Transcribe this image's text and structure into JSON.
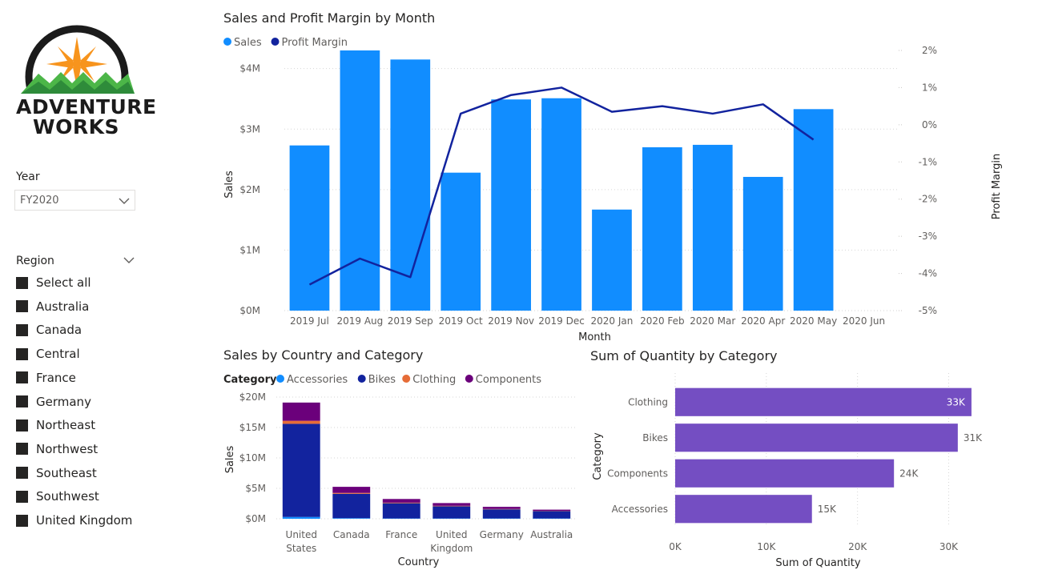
{
  "brand": {
    "line1": "Adventure",
    "line2": "Works"
  },
  "filters": {
    "year": {
      "title": "Year",
      "value": "FY2020"
    },
    "region": {
      "title": "Region",
      "items": [
        "Select all",
        "Australia",
        "Canada",
        "Central",
        "France",
        "Germany",
        "Northeast",
        "Northwest",
        "Southeast",
        "Southwest",
        "United Kingdom"
      ]
    }
  },
  "visuals": {
    "top": {
      "title": "Sales and Profit Margin by Month"
    },
    "bottom_left": {
      "title": "Sales by Country and Category"
    },
    "bottom_right": {
      "title": "Sum of Quantity by Category"
    }
  },
  "colors": {
    "sales": "#118DFF",
    "profit_margin": "#12239E",
    "bikes": "#12239E",
    "accessories": "#118DFF",
    "clothing": "#E66C37",
    "components": "#6B007B",
    "quantity_bar": "#744EC2"
  },
  "chart_data": [
    {
      "type": "bar",
      "combo": "bar+line",
      "title": "Sales and Profit Margin by Month",
      "xlabel": "Month",
      "ylabel": "Sales",
      "y2label": "Profit Margin",
      "legend": {
        "position": "top-left",
        "entries": [
          "Sales",
          "Profit Margin"
        ]
      },
      "categories": [
        "2019 Jul",
        "2019 Aug",
        "2019 Sep",
        "2019 Oct",
        "2019 Nov",
        "2019 Dec",
        "2020 Jan",
        "2020 Feb",
        "2020 Mar",
        "2020 Apr",
        "2020 May",
        "2020 Jun"
      ],
      "series": [
        {
          "name": "Sales",
          "type": "bar",
          "axis": "left",
          "values": [
            2.73,
            4.3,
            4.15,
            2.28,
            3.49,
            3.51,
            1.67,
            2.7,
            2.74,
            2.21,
            3.33,
            null
          ]
        },
        {
          "name": "Profit Margin",
          "type": "line",
          "axis": "right",
          "values": [
            -4.3,
            -3.6,
            -4.1,
            0.3,
            0.8,
            1.0,
            0.35,
            0.5,
            0.3,
            0.55,
            -0.4,
            null
          ]
        }
      ],
      "ylim": [
        0,
        4.3
      ],
      "yticks": [
        "$0M",
        "$1M",
        "$2M",
        "$3M",
        "$4M"
      ],
      "y2lim": [
        -5,
        2
      ],
      "y2ticks": [
        "2%",
        "1%",
        "0%",
        "-1%",
        "-2%",
        "-3%",
        "-4%",
        "-5%"
      ],
      "grid": true
    },
    {
      "type": "bar",
      "stacked": true,
      "title": "Sales by Country and Category",
      "xlabel": "Country",
      "ylabel": "Sales",
      "legend": {
        "position": "top-left",
        "title": "Category",
        "entries": [
          "Accessories",
          "Bikes",
          "Clothing",
          "Components"
        ]
      },
      "categories": [
        "United States",
        "Canada",
        "France",
        "United Kingdom",
        "Germany",
        "Australia"
      ],
      "category_lines": [
        [
          "United",
          "States"
        ],
        [
          "Canada"
        ],
        [
          "France"
        ],
        [
          "United",
          "Kingdom"
        ],
        [
          "Germany"
        ],
        [
          "Australia"
        ]
      ],
      "series": [
        {
          "name": "Accessories",
          "values": [
            0.3,
            0.1,
            0.05,
            0.05,
            0.05,
            0.05
          ]
        },
        {
          "name": "Bikes",
          "values": [
            15.3,
            4.0,
            2.5,
            2.0,
            1.5,
            1.2
          ]
        },
        {
          "name": "Clothing",
          "values": [
            0.5,
            0.15,
            0.1,
            0.08,
            0.06,
            0.05
          ]
        },
        {
          "name": "Components",
          "values": [
            3.0,
            1.0,
            0.6,
            0.45,
            0.35,
            0.2
          ]
        }
      ],
      "ylim": [
        0,
        20
      ],
      "yticks": [
        "$0M",
        "$5M",
        "$10M",
        "$15M",
        "$20M"
      ],
      "grid": true
    },
    {
      "type": "bar",
      "orientation": "horizontal",
      "title": "Sum of Quantity by Category",
      "xlabel": "Sum of Quantity",
      "ylabel": "Category",
      "categories": [
        "Clothing",
        "Bikes",
        "Components",
        "Accessories"
      ],
      "values": [
        32.5,
        31.0,
        24.0,
        15.0
      ],
      "data_labels": [
        "33K",
        "31K",
        "24K",
        "15K"
      ],
      "xlim": [
        0,
        34
      ],
      "xticks": [
        "0K",
        "10K",
        "20K",
        "30K"
      ],
      "grid": true
    }
  ]
}
